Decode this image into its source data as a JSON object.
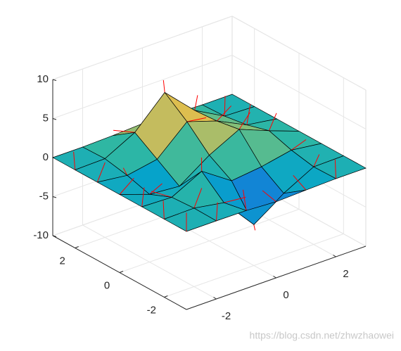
{
  "chart_data": {
    "type": "surface",
    "x": [
      -3,
      -2,
      -1,
      0,
      1,
      2,
      3
    ],
    "y": [
      -3,
      -2,
      -1,
      0,
      1,
      2,
      3
    ],
    "z": [
      [
        0,
        0,
        -0.03,
        -0.25,
        -0.11,
        0,
        0
      ],
      [
        0,
        0.05,
        -0.6,
        -4.76,
        -2.1,
        -0.06,
        0
      ],
      [
        0,
        -0.13,
        1.85,
        -0.72,
        -0.27,
        0.5,
        0
      ],
      [
        0,
        -1.33,
        -1.65,
        0.98,
        2.94,
        1.41,
        0
      ],
      [
        0,
        -0.48,
        0.23,
        3.69,
        2.43,
        0.58,
        0
      ],
      [
        0,
        0.08,
        2.09,
        5.86,
        2.21,
        0.13,
        0
      ],
      [
        0,
        0,
        0.11,
        0.3,
        0.11,
        0,
        0
      ]
    ],
    "xlim": [
      -3,
      3
    ],
    "ylim": [
      -3,
      3
    ],
    "zlim": [
      -10,
      10
    ],
    "xticks": [
      -2,
      0,
      2
    ],
    "yticks": [
      -2,
      0,
      2
    ],
    "zticks": [
      -10,
      -5,
      0,
      5,
      10
    ],
    "grid": true,
    "colormap": "parula",
    "edge_color": "#000000",
    "normal_color": "#ff0000"
  },
  "watermark": "https://blog.csdn.net/zhwzhaowei"
}
